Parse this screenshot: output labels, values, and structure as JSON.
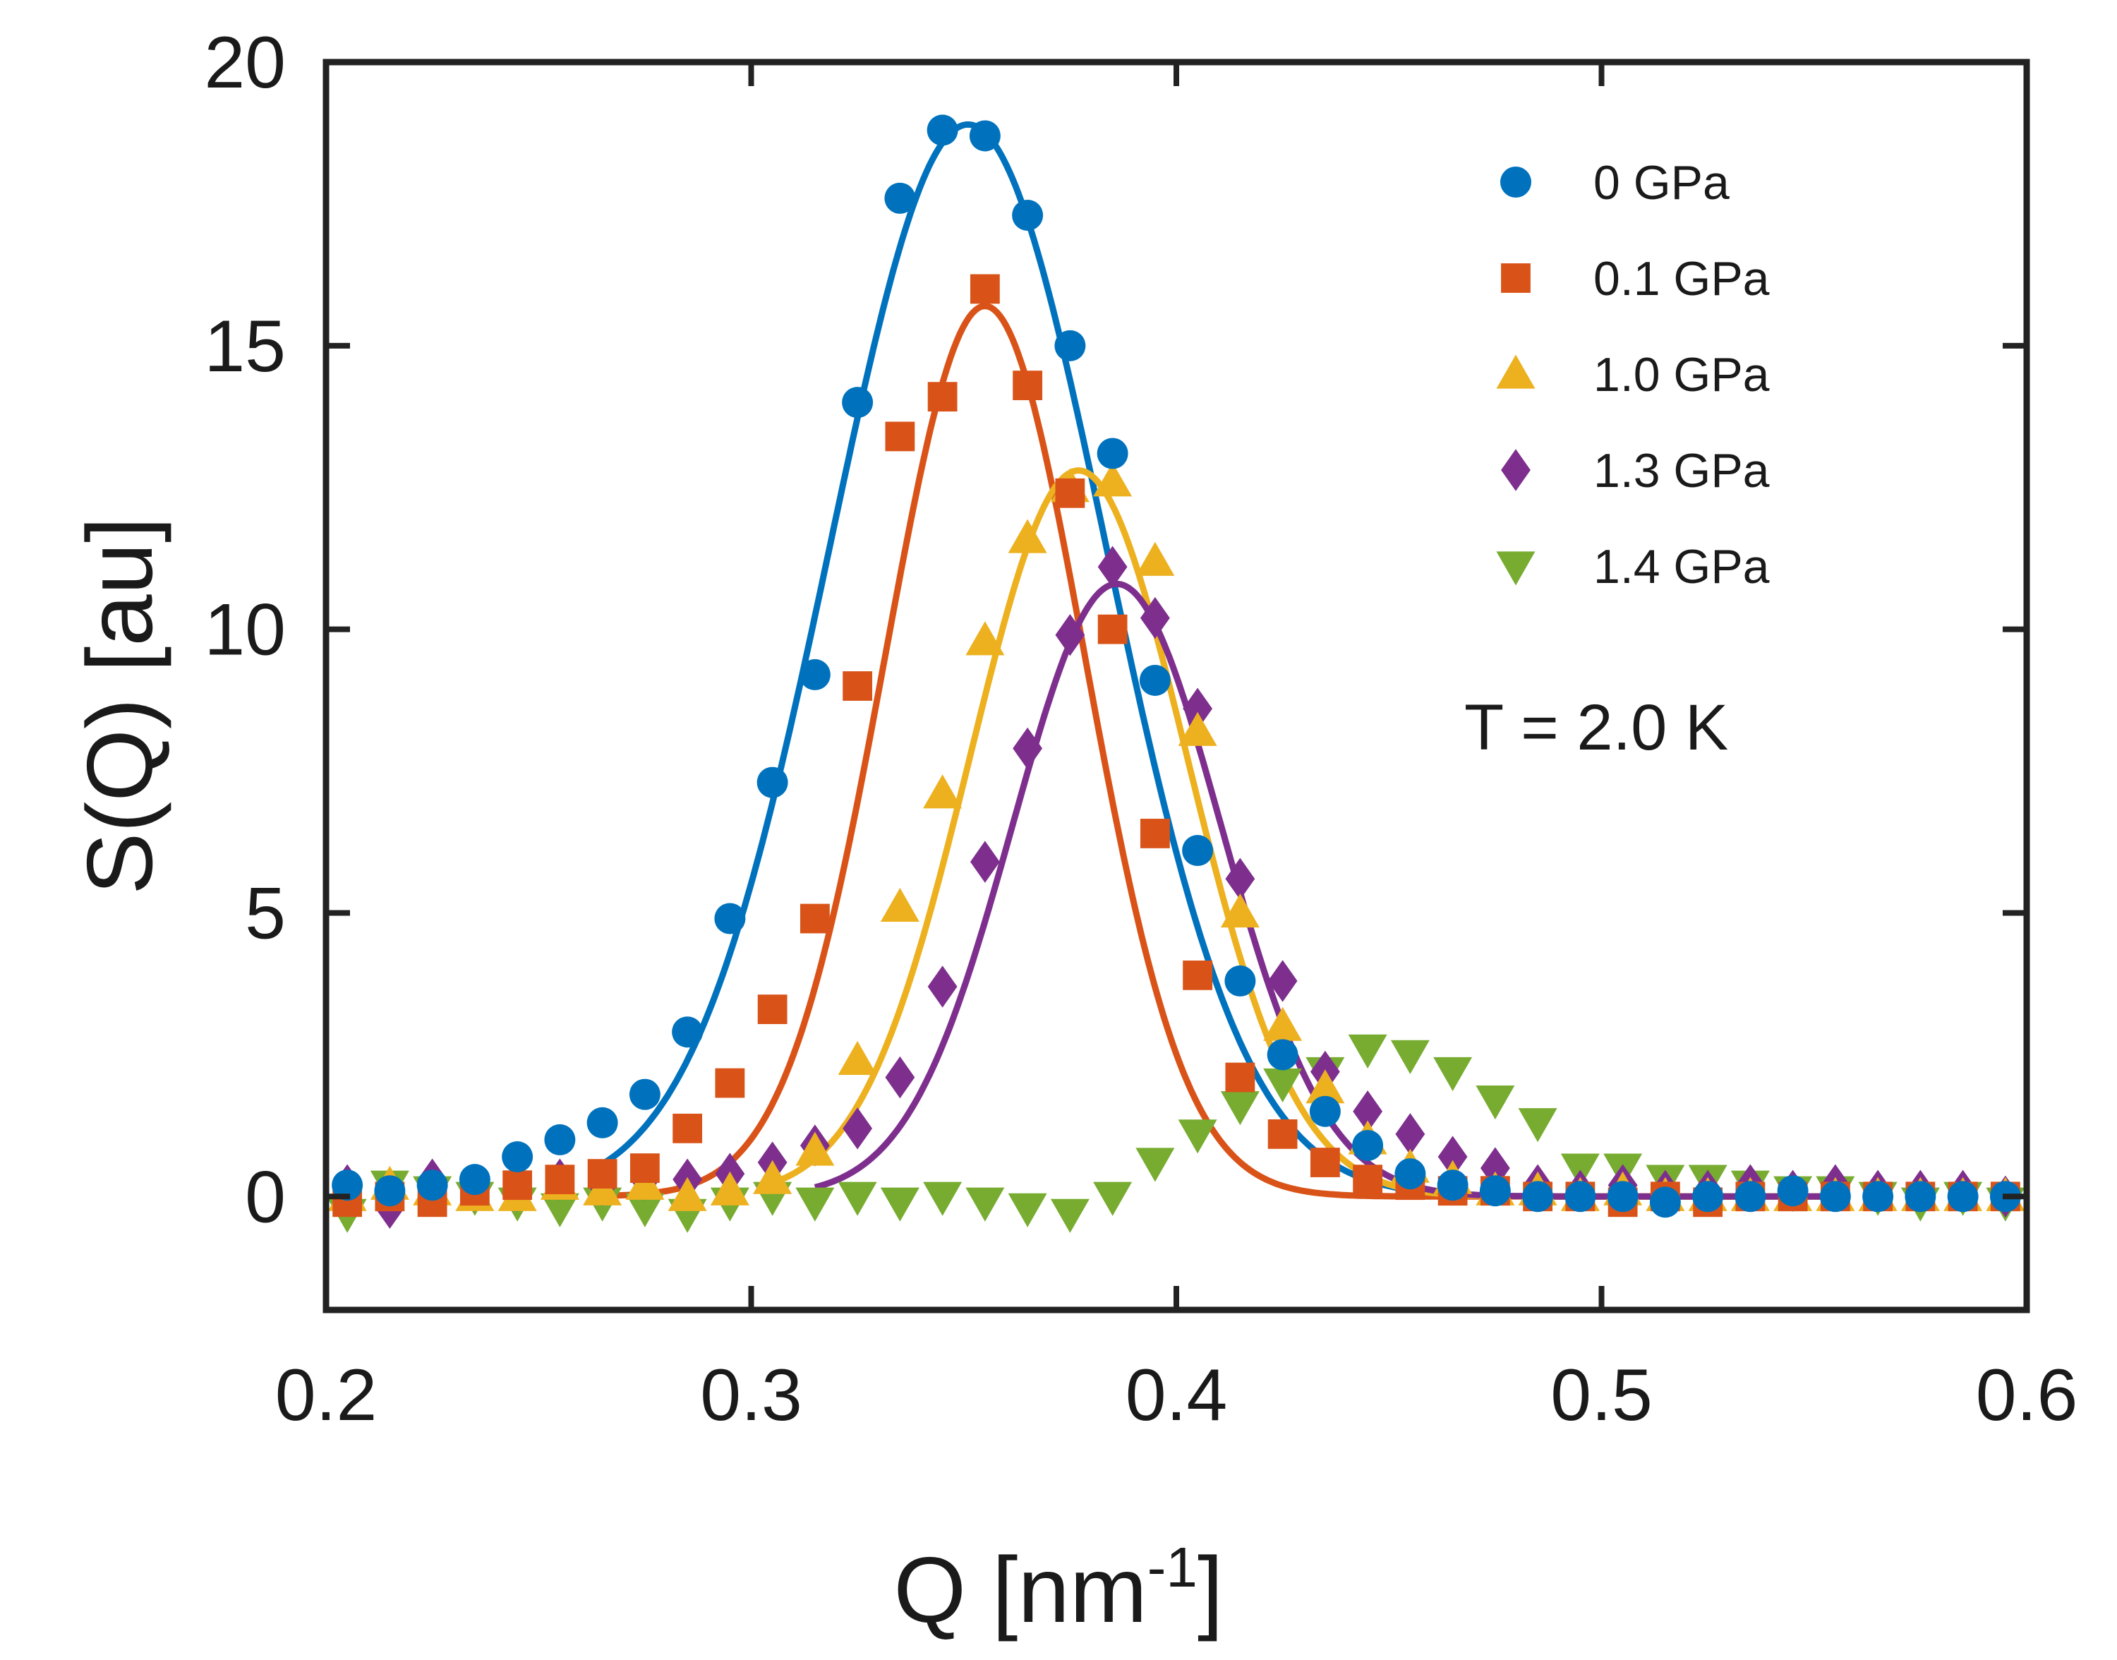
{
  "chart_data": {
    "type": "scatter",
    "title": "",
    "xlabel": "Q [nm",
    "xlabel_superscript": "-1",
    "xlabel_suffix": "]",
    "ylabel": "S(Q)  [au]",
    "xlim": [
      0.2,
      0.6
    ],
    "ylim": [
      -2,
      20
    ],
    "xticks": [
      0.2,
      0.3,
      0.4,
      0.5,
      0.6
    ],
    "xtick_labels": [
      "0.2",
      "0.3",
      "0.4",
      "0.5",
      "0.6"
    ],
    "yticks": [
      0,
      5,
      10,
      15,
      20
    ],
    "ytick_labels": [
      "0",
      "5",
      "10",
      "15",
      "20"
    ],
    "grid": false,
    "legend_position": "top-right",
    "annotation": "T = 2.0 K",
    "x": [
      0.205,
      0.215,
      0.225,
      0.235,
      0.245,
      0.255,
      0.265,
      0.275,
      0.285,
      0.295,
      0.305,
      0.315,
      0.325,
      0.335,
      0.345,
      0.355,
      0.365,
      0.375,
      0.385,
      0.395,
      0.405,
      0.415,
      0.425,
      0.435,
      0.445,
      0.455,
      0.465,
      0.475,
      0.485,
      0.495,
      0.505,
      0.515,
      0.525,
      0.535,
      0.545,
      0.555,
      0.565,
      0.575,
      0.585,
      0.595
    ],
    "series": [
      {
        "name": "0 GPa",
        "color": "#0072BD",
        "marker": "circle",
        "values": [
          0.2,
          0.1,
          0.2,
          0.3,
          0.7,
          1.0,
          1.3,
          1.8,
          2.9,
          4.9,
          7.3,
          9.2,
          14.0,
          17.6,
          18.8,
          18.7,
          17.3,
          15.0,
          13.1,
          9.1,
          6.1,
          3.8,
          2.5,
          1.5,
          0.9,
          0.4,
          0.2,
          0.1,
          0.0,
          0.0,
          0.0,
          -0.1,
          0.0,
          0.0,
          0.1,
          0.0,
          0.0,
          0.0,
          0.0,
          0.0
        ],
        "fit": {
          "amplitude": 18.9,
          "center": 0.351,
          "sigma": 0.0325,
          "n_min": 6,
          "n_max": 4
        }
      },
      {
        "name": "0.1 GPa",
        "color": "#D95319",
        "marker": "square",
        "values": [
          -0.1,
          0.0,
          -0.1,
          0.1,
          0.2,
          0.3,
          0.4,
          0.5,
          1.2,
          2.0,
          3.3,
          4.9,
          9.0,
          13.4,
          14.1,
          16.0,
          14.3,
          12.4,
          10.0,
          6.4,
          3.9,
          2.1,
          1.1,
          0.6,
          0.3,
          0.2,
          0.1,
          0.1,
          0.0,
          0.0,
          -0.1,
          0.0,
          -0.1,
          0.0,
          0.0,
          0.0,
          0.0,
          0.0,
          0.0,
          0.0
        ],
        "fit": {
          "amplitude": 15.7,
          "center": 0.355,
          "sigma": 0.0235,
          "n_min": 6,
          "n_max": 4
        }
      },
      {
        "name": "1.0 GPa",
        "color": "#EDB120",
        "marker": "triangle-up",
        "values": [
          0.0,
          0.2,
          0.1,
          0.0,
          0.0,
          0.2,
          0.1,
          0.2,
          0.0,
          0.1,
          0.3,
          0.8,
          2.4,
          5.1,
          7.1,
          9.8,
          11.6,
          12.5,
          12.6,
          11.2,
          8.2,
          5.0,
          3.0,
          1.9,
          1.0,
          0.5,
          0.3,
          0.1,
          0.1,
          0.0,
          0.1,
          0.0,
          0.0,
          0.0,
          0.0,
          0.0,
          0.0,
          0.0,
          0.0,
          0.0
        ],
        "fit": {
          "amplitude": 12.8,
          "center": 0.377,
          "sigma": 0.0255,
          "n_min": 10,
          "n_max": 4
        }
      },
      {
        "name": "1.3 GPa",
        "color": "#7E2F8E",
        "marker": "diamond",
        "values": [
          0.2,
          -0.2,
          0.3,
          0.1,
          0.1,
          0.3,
          0.2,
          0.3,
          0.3,
          0.4,
          0.6,
          0.9,
          1.2,
          2.1,
          3.7,
          5.9,
          7.9,
          9.9,
          11.1,
          10.2,
          8.6,
          5.6,
          3.8,
          2.2,
          1.5,
          1.1,
          0.7,
          0.5,
          0.2,
          0.1,
          0.2,
          0.1,
          0.1,
          0.2,
          0.1,
          0.2,
          0.1,
          0.1,
          0.1,
          0.0
        ],
        "fit": {
          "amplitude": 10.8,
          "center": 0.386,
          "sigma": 0.0245,
          "n_min": 11,
          "n_max": 4
        }
      },
      {
        "name": "1.4 GPa",
        "color": "#77AC30",
        "marker": "triangle-down",
        "values": [
          -0.3,
          0.2,
          0.1,
          0.0,
          -0.1,
          -0.2,
          -0.1,
          -0.2,
          -0.3,
          -0.1,
          0.0,
          -0.1,
          0.0,
          -0.1,
          0.0,
          -0.1,
          -0.2,
          -0.3,
          0.0,
          0.6,
          1.1,
          1.6,
          2.0,
          2.2,
          2.6,
          2.5,
          2.2,
          1.7,
          1.3,
          0.5,
          0.5,
          0.3,
          0.3,
          0.2,
          0.1,
          0.1,
          0.0,
          -0.1,
          0.0,
          -0.1
        ]
      }
    ]
  }
}
